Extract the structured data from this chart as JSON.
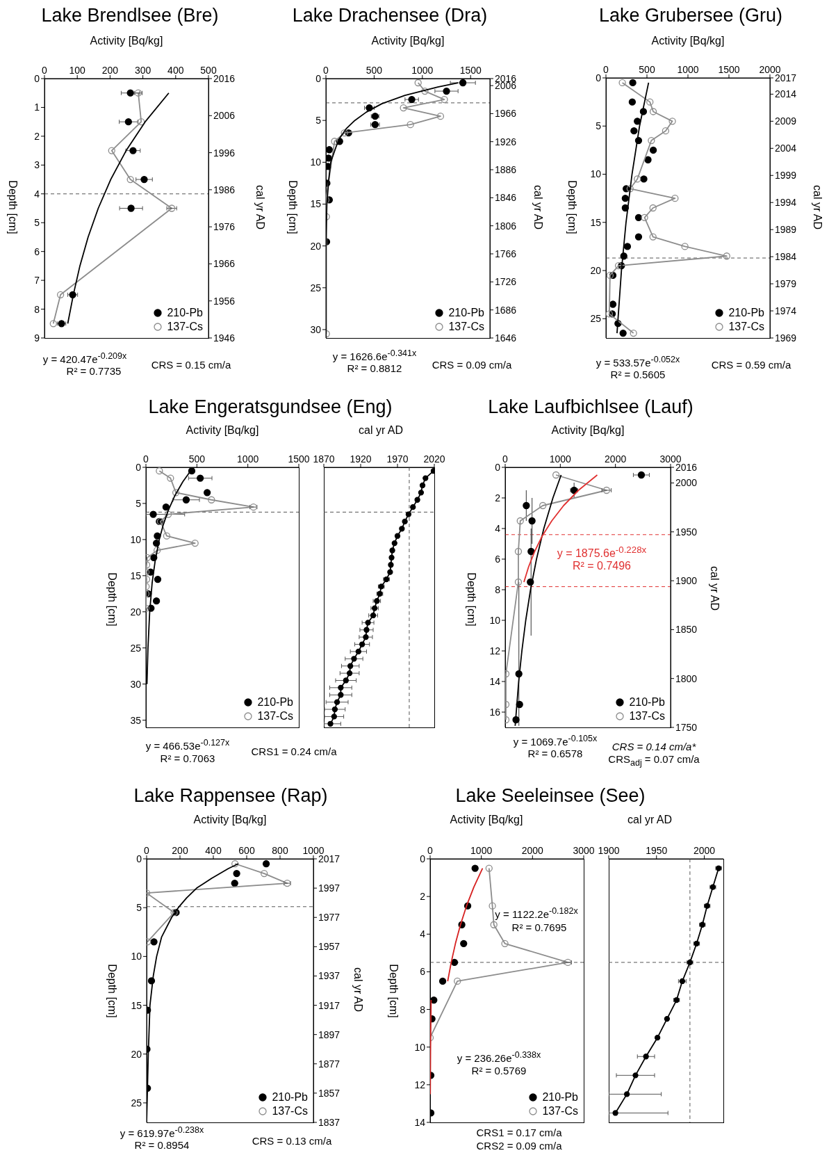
{
  "chart_data": [
    {
      "type": "scatter",
      "title": "Lake Brendlsee (Bre)",
      "xlabel": "Activity [Bq/kg]",
      "ylabel": "Depth [cm]",
      "y2label": "cal yr AD",
      "xlim": [
        0,
        500
      ],
      "xticks": [
        0,
        100,
        200,
        300,
        400,
        500
      ],
      "ylim": [
        9,
        0
      ],
      "yticks": [
        0,
        1,
        2,
        3,
        4,
        5,
        6,
        7,
        8,
        9
      ],
      "y2lim": [
        1946,
        2016
      ],
      "y2ticks": [
        2016,
        2006,
        1996,
        1986,
        1976,
        1966,
        1956,
        1946
      ],
      "legend": "bottom right",
      "ref_lines": [
        {
          "axis": "y",
          "value": 4,
          "line_style": "dashed",
          "color": "#555555"
        }
      ],
      "annotations": [
        "y = 420.47e$^{-0.209x}$",
        "R² = 0.7735",
        "CRS = 0.15 cm/a"
      ],
      "series": [
        {
          "name": "210-Pb",
          "marker": "circle",
          "color": "#000000",
          "x": [
            262,
            256,
            270,
            304,
            264,
            86,
            52
          ],
          "values": [
            0.5,
            1.5,
            2.5,
            3.5,
            4.5,
            7.5,
            8.5
          ],
          "xerrors": [
            28,
            28,
            22,
            25,
            35,
            15,
            13
          ]
        },
        {
          "name": "137-Cs",
          "type": "line",
          "marker": "circle",
          "line_style": "solid",
          "color": "#8c8c8c",
          "x": [
            286,
            295,
            205,
            262,
            388,
            49,
            27
          ],
          "values": [
            0.5,
            1.5,
            2.5,
            3.5,
            4.5,
            7.5,
            8.5
          ],
          "xerrors": [
            12,
            null,
            null,
            null,
            15,
            null,
            null
          ]
        },
        {
          "type": "line",
          "marker": "none",
          "color": "#000000",
          "x": [
            379,
            307,
            249,
            202,
            164,
            133,
            108,
            88,
            71
          ],
          "values": [
            0.5,
            1.5,
            2.5,
            3.5,
            4.5,
            5.5,
            6.5,
            7.5,
            8.5
          ]
        }
      ]
    },
    {
      "type": "scatter",
      "title": "Lake Drachensee (Dra)",
      "xlabel": "Activity [Bq/kg]",
      "ylabel": "Depth [cm]",
      "y2label": "cal yr AD",
      "xlim": [
        0,
        1700
      ],
      "xticks": [
        0,
        500,
        1000,
        1500
      ],
      "ylim": [
        31,
        0
      ],
      "yticks": [
        0,
        5,
        10,
        15,
        20,
        25,
        30
      ],
      "y2lim": [
        1646,
        2016
      ],
      "y2ticks": [
        2016,
        2006,
        1966,
        1926,
        1886,
        1846,
        1806,
        1766,
        1726,
        1686,
        1646
      ],
      "legend": "bottom right",
      "ref_lines": [
        {
          "axis": "y",
          "value": 2.9,
          "line_style": "dashed",
          "color": "#555555"
        }
      ],
      "annotations": [
        "y = 1626.6e$^{-0.341x}$",
        "R² = 0.8812",
        "CRS = 0.09 cm/a"
      ],
      "series": [
        {
          "name": "210-Pb",
          "marker": "circle",
          "color": "#000000",
          "x": [
            1420,
            1250,
            890,
            450,
            510,
            510,
            235,
            142,
            35,
            27,
            22,
            10,
            35,
            7
          ],
          "values": [
            0.5,
            1.5,
            2.5,
            3.5,
            4.5,
            5.5,
            6.5,
            7.5,
            8.5,
            9.5,
            10.5,
            12.5,
            14.5,
            19.5
          ],
          "xerrors": [
            130,
            120,
            70,
            50,
            40,
            45,
            null,
            null,
            null,
            null,
            null,
            null,
            null,
            null
          ]
        },
        {
          "name": "137-Cs",
          "type": "line",
          "marker": "circle",
          "line_style": "solid",
          "color": "#8c8c8c",
          "x": [
            956,
            1026,
            1228,
            804,
            1188,
            876,
            192,
            90,
            0,
            5,
            5
          ],
          "values": [
            0.5,
            1.5,
            2.5,
            3.5,
            4.5,
            5.5,
            6.5,
            7.5,
            14.5,
            16.5,
            30.5
          ]
        },
        {
          "type": "line",
          "marker": "none",
          "color": "#000000",
          "x": [
            1370,
            1160,
            820,
            580,
            420,
            300,
            210,
            150,
            110,
            50,
            30,
            10,
            0,
            0
          ],
          "values": [
            0.5,
            1,
            2,
            3,
            4,
            5,
            6,
            7,
            8,
            10,
            12,
            15,
            20,
            31
          ]
        }
      ]
    },
    {
      "type": "scatter",
      "title": "Lake Grubersee (Gru)",
      "xlabel": "Activity [Bq/kg]",
      "ylabel": "Depth [cm]",
      "y2label": "cal yr AD",
      "xlim": [
        0,
        2000
      ],
      "xticks": [
        0,
        500,
        1000,
        1500,
        2000
      ],
      "ylim": [
        27,
        0
      ],
      "yticks": [
        0,
        5,
        10,
        15,
        20,
        25
      ],
      "y2lim": [
        1969,
        2017
      ],
      "y2ticks": [
        2017,
        2014,
        2009,
        2004,
        1999,
        1994,
        1989,
        1984,
        1979,
        1974,
        1969
      ],
      "legend": "bottom right",
      "ref_lines": [
        {
          "axis": "y",
          "value": 18.7,
          "line_style": "dashed",
          "color": "#555555"
        }
      ],
      "annotations": [
        "y = 533.57e$^{-0.052x}$",
        "R² = 0.5605",
        "CRS = 0.59 cm/a"
      ],
      "series": [
        {
          "name": "210-Pb",
          "marker": "circle",
          "color": "#000000",
          "x": [
            327,
            321,
            457,
            383,
            342,
            398,
            577,
            513,
            462,
            247,
            236,
            236,
            398,
            398,
            262,
            218,
            189,
            85,
            85,
            77,
            147,
            209
          ],
          "values": [
            0.5,
            2.5,
            3.5,
            4.5,
            5.5,
            6.5,
            7.5,
            8.5,
            10.5,
            11.5,
            12.5,
            13.5,
            14.5,
            16.5,
            17.5,
            18.5,
            19.5,
            20.5,
            23.5,
            24.5,
            25.5,
            26.5
          ]
        },
        {
          "name": "137-Cs",
          "type": "line",
          "marker": "circle",
          "line_style": "solid",
          "color": "#8c8c8c",
          "x": [
            200,
            536,
            577,
            810,
            728,
            554,
            383,
            295,
            842,
            574,
            471,
            574,
            963,
            1473,
            153,
            50,
            41,
            336
          ],
          "values": [
            0.5,
            2.5,
            3.5,
            4.5,
            5.5,
            6.5,
            10.5,
            11.5,
            12.5,
            13.5,
            14.5,
            16.5,
            17.5,
            18.5,
            19.5,
            20.5,
            24.5,
            26.5
          ]
        },
        {
          "type": "line",
          "marker": "none",
          "color": "#000000",
          "x": [
            520,
            410,
            318,
            245,
            189,
            135
          ],
          "values": [
            0.5,
            5,
            10,
            15,
            20,
            26.5
          ]
        }
      ]
    },
    {
      "type": "scatter",
      "title": "Lake Engeratsgundsee (Eng)",
      "xlabel": "Activity [Bq/kg]",
      "ylabel": "Depth [cm]",
      "xlim": [
        0,
        1500
      ],
      "xticks": [
        0,
        500,
        1000,
        1500
      ],
      "ylim": [
        36,
        0
      ],
      "yticks": [
        0,
        5,
        10,
        15,
        20,
        25,
        30,
        35
      ],
      "legend": "bottom right",
      "ref_lines": [
        {
          "axis": "y",
          "value": 6.2,
          "line_style": "dashed",
          "color": "#555555"
        }
      ],
      "annotations": [
        "y = 466.53e$^{-0.127x}$",
        "R² = 0.7063",
        "CRS1 = 0.24 cm/a"
      ],
      "series": [
        {
          "name": "210-Pb",
          "marker": "circle",
          "color": "#000000",
          "x": [
            450,
            533,
            601,
            395,
            197,
            72,
            132,
            112,
            103,
            77,
            46,
            116,
            22,
            103,
            50
          ],
          "values": [
            0.5,
            1.5,
            3.5,
            4.5,
            5.5,
            6.5,
            7.5,
            9.5,
            10.5,
            12.5,
            14.5,
            15.5,
            17.5,
            18.5,
            19.5
          ],
          "xerrors": [
            null,
            115,
            null,
            130,
            null,
            [
              0,
              380
            ],
            null,
            null,
            null,
            null,
            null,
            null,
            null,
            null,
            null
          ]
        },
        {
          "name": "137-Cs",
          "type": "line",
          "marker": "circle",
          "line_style": "solid",
          "color": "#8c8c8c",
          "x": [
            132,
            241,
            294,
            643,
            1055,
            219,
            143,
            204,
            482,
            110,
            13,
            7,
            0,
            7,
            2,
            0,
            0
          ],
          "values": [
            0.5,
            1.5,
            3.5,
            4.5,
            5.5,
            6.5,
            7.5,
            9.5,
            10.5,
            11.5,
            12.5,
            13.5,
            14.5,
            15.5,
            16.5,
            17.5,
            19.5
          ],
          "xerrors": [
            null,
            null,
            null,
            null,
            35,
            null,
            null,
            null,
            null,
            null,
            null,
            null,
            null,
            null,
            null,
            null,
            null
          ]
        },
        {
          "type": "line",
          "marker": "none",
          "color": "#000000",
          "x": [
            438,
            362,
            281,
            218,
            169,
            131,
            90,
            61,
            37,
            20,
            10
          ],
          "values": [
            0.5,
            2,
            4,
            6,
            8,
            10,
            13,
            16,
            20,
            25,
            30
          ]
        }
      ]
    },
    {
      "type": "line",
      "xlabel": "cal yr AD",
      "xlim": [
        1870,
        2020
      ],
      "xticks": [
        1870,
        1920,
        1970,
        2020
      ],
      "ylim": [
        36,
        0
      ],
      "tick_labels": "x",
      "ref_lines": [
        {
          "axis": "y",
          "value": 6.2,
          "line_style": "dashed",
          "color": "#555555"
        },
        {
          "axis": "x",
          "value": 1986,
          "line_style": "dashed",
          "color": "#555555"
        }
      ],
      "series": [
        {
          "marker": "circle",
          "color": "#000000",
          "x": [
            2019,
            2008,
            2004,
            2002,
            1997,
            1991,
            1985,
            1980,
            1976,
            1970,
            1966,
            1963,
            1962,
            1961,
            1960,
            1955,
            1948,
            1946,
            1942,
            1939,
            1937,
            1930,
            1928,
            1927,
            1922,
            1917,
            1911,
            1906,
            1905,
            1900,
            1893,
            1893,
            1888,
            1885,
            1884,
            1879
          ],
          "values": [
            0.5,
            1.5,
            2.5,
            3.5,
            4.5,
            5.5,
            6.5,
            7.5,
            8.5,
            9.5,
            10.5,
            11.5,
            12.5,
            13.5,
            14.5,
            15.5,
            16.5,
            17.5,
            18.5,
            19.5,
            20.5,
            21.5,
            22.5,
            23.5,
            24.5,
            25.5,
            26.5,
            27.5,
            28.5,
            29.5,
            30.5,
            31.5,
            32.5,
            33.5,
            34.5,
            35.5
          ],
          "xerrors": [
            null,
            null,
            null,
            null,
            null,
            null,
            null,
            null,
            null,
            null,
            null,
            null,
            null,
            null,
            null,
            4,
            4,
            4,
            5,
            5,
            6,
            8,
            9,
            9,
            10,
            11,
            12,
            12,
            13,
            14,
            15,
            15,
            15,
            14,
            13,
            [
              1870,
              1893
            ]
          ]
        }
      ]
    },
    {
      "type": "scatter",
      "title": "Lake Laufbichlsee (Lauf)",
      "xlabel": "Activity [Bq/kg]",
      "ylabel": "Depth [cm]",
      "y2label": "cal yr AD",
      "xlim": [
        0,
        3000
      ],
      "xticks": [
        0,
        1000,
        2000,
        3000
      ],
      "ylim": [
        17,
        0
      ],
      "yticks": [
        0,
        2,
        4,
        6,
        8,
        10,
        12,
        14,
        16
      ],
      "y2lim": [
        1750,
        2016
      ],
      "y2ticks": [
        2016,
        2000,
        1950,
        1900,
        1850,
        1800,
        1750
      ],
      "legend": "bottom right",
      "ref_lines": [
        {
          "axis": "y",
          "value": 4.4,
          "line_style": "dashed",
          "color": "#e03030"
        },
        {
          "axis": "y",
          "value": 7.8,
          "line_style": "dashed",
          "color": "#e03030"
        }
      ],
      "annotations": [
        "y = 1069.7e$^{-0.105x}$",
        "R² = 0.6578",
        "CRS = 0.14 cm/a*",
        "CRS$_{adj}$ = 0.07 cm/a"
      ],
      "series": [
        {
          "name": "210-Pb",
          "marker": "circle",
          "color": "#000000",
          "x": [
            2470,
            1250,
            383,
            487,
            470,
            457,
            248,
            261,
            196
          ],
          "values": [
            0.5,
            1.5,
            2.5,
            3.5,
            5.5,
            7.5,
            13.5,
            15.5,
            16.5
          ],
          "xerrors": [
            145,
            65,
            null,
            null,
            null,
            null,
            null,
            null,
            null
          ],
          "errors": [
            null,
            0.5,
            1,
            [
              2,
              5
            ],
            [
              4,
              11
            ],
            null,
            [
              7.5,
              16.9
            ],
            null,
            null
          ]
        },
        {
          "name": "137-Cs",
          "type": "line",
          "marker": "circle",
          "line_style": "solid",
          "color": "#8c8c8c",
          "x": [
            922,
            1839,
            683,
            274,
            239,
            239,
            13,
            13,
            13
          ],
          "values": [
            0.5,
            1.5,
            2.5,
            3.5,
            5.5,
            7.5,
            13.5,
            15.5,
            16.5
          ],
          "xerrors": [
            null,
            85,
            null,
            null,
            null,
            null,
            null,
            null,
            null
          ]
        },
        {
          "type": "line",
          "marker": "none",
          "color": "#000000",
          "x": [
            1015,
            866,
            701,
            568,
            460,
            373,
            303,
            245,
            181
          ],
          "values": [
            0.5,
            2,
            4,
            6,
            8,
            10,
            12,
            14,
            16.9
          ]
        },
        {
          "name": "y = 1875.6e$^{-0.228x}$\nR² = 0.7496",
          "type": "line",
          "marker": "none",
          "color": "#e03030",
          "x": [
            1670,
            1330,
            1060,
            845,
            670,
            535,
            425,
            340
          ],
          "values": [
            0.5,
            1.5,
            2.5,
            3.5,
            4.5,
            5.5,
            6.5,
            7.5
          ]
        }
      ]
    },
    {
      "type": "scatter",
      "title": "Lake Rappensee (Rap)",
      "xlabel": "Activity [Bq/kg]",
      "ylabel": "Depth [cm]",
      "y2label": "cal yr AD",
      "xlim": [
        0,
        1000
      ],
      "xticks": [
        0,
        200,
        400,
        600,
        800,
        1000
      ],
      "ylim": [
        27,
        0
      ],
      "yticks": [
        0,
        5,
        10,
        15,
        20,
        25
      ],
      "y2lim": [
        1837,
        2017
      ],
      "y2ticks": [
        2017,
        1997,
        1977,
        1957,
        1937,
        1917,
        1897,
        1877,
        1857,
        1837
      ],
      "legend": "bottom right",
      "ref_lines": [
        {
          "axis": "y",
          "value": 4.9,
          "line_style": "dashed",
          "color": "#555555"
        }
      ],
      "annotations": [
        "y = 619.97e$^{-0.238x}$",
        "R² = 0.8954",
        "CRS = 0.13 cm/a"
      ],
      "series": [
        {
          "name": "210-Pb",
          "marker": "circle",
          "color": "#000000",
          "x": [
            717,
            540,
            528,
            177,
            44,
            29,
            5,
            2,
            5
          ],
          "values": [
            0.5,
            1.5,
            2.5,
            5.5,
            8.5,
            12.5,
            15.5,
            19.5,
            23.5
          ]
        },
        {
          "name": "137-Cs",
          "type": "line",
          "marker": "circle",
          "line_style": "solid",
          "color": "#8c8c8c",
          "x": [
            530,
            705,
            843,
            0,
            165,
            5
          ],
          "values": [
            0.5,
            1.5,
            2.5,
            3.5,
            5.5,
            8.5
          ],
          "xerrors": [
            null,
            null,
            20,
            null,
            null,
            null
          ]
        },
        {
          "type": "line",
          "marker": "none",
          "color": "#000000",
          "x": [
            550,
            490,
            390,
            300,
            240,
            190,
            150,
            90,
            60,
            40,
            20,
            10,
            0
          ],
          "values": [
            0.5,
            1,
            2,
            3,
            4,
            5,
            6,
            8,
            10,
            12,
            15,
            20,
            27
          ]
        }
      ]
    },
    {
      "type": "scatter",
      "title": "Lake Seeleinsee (See)",
      "xlabel": "Activity [Bq/kg]",
      "ylabel": "Depth [cm]",
      "xlim": [
        0,
        3000
      ],
      "xticks": [
        0,
        1000,
        2000,
        3000
      ],
      "ylim": [
        14,
        0
      ],
      "yticks": [
        0,
        2,
        4,
        6,
        8,
        10,
        12,
        14
      ],
      "legend": "bottom right",
      "ref_lines": [
        {
          "axis": "y",
          "value": 5.5,
          "line_style": "dashed",
          "color": "#555555"
        }
      ],
      "annotations": [
        "y = 1122.2e$^{-0.182x}$",
        "R² = 0.7695",
        "y = 236.26e$^{-0.338x}$",
        "R² = 0.5769",
        "CRS1 = 0.17 cm/a",
        "CRS2 = 0.09 cm/a"
      ],
      "series": [
        {
          "name": "210-Pb",
          "marker": "circle",
          "color": "#000000",
          "x": [
            878,
            734,
            619,
            655,
            475,
            245,
            72,
            36,
            14,
            14
          ],
          "values": [
            0.5,
            2.5,
            3.5,
            4.5,
            5.5,
            6.5,
            7.5,
            8.5,
            11.5,
            13.5
          ]
        },
        {
          "name": "137-Cs",
          "type": "line",
          "marker": "circle",
          "line_style": "solid",
          "color": "#8c8c8c",
          "x": [
            1151,
            1216,
            1245,
            1460,
            2691,
            532,
            0
          ],
          "values": [
            0.5,
            2.5,
            3.5,
            4.5,
            5.5,
            6.5,
            9.5
          ],
          "xerrors": [
            null,
            null,
            null,
            null,
            70,
            null,
            null
          ]
        },
        {
          "type": "line",
          "marker": "none",
          "color": "#d62020",
          "x": [
            1024,
            854,
            711,
            593,
            494,
            412,
            343
          ],
          "values": [
            0.5,
            1.5,
            2.5,
            3.5,
            4.5,
            5.5,
            6.5
          ]
        },
        {
          "type": "line",
          "marker": "none",
          "color": "#d62020",
          "x": [
            19,
            8,
            3
          ],
          "values": [
            7.5,
            10,
            12.5
          ]
        }
      ]
    },
    {
      "type": "line",
      "xlabel": "cal yr AD",
      "xlim": [
        1900,
        2020
      ],
      "xticks": [
        1900,
        1950,
        2000
      ],
      "ylim": [
        14,
        0
      ],
      "tick_labels": "x",
      "ref_lines": [
        {
          "axis": "y",
          "value": 5.5,
          "line_style": "dashed",
          "color": "#555555"
        },
        {
          "axis": "x",
          "value": 1985,
          "line_style": "dashed",
          "color": "#555555"
        }
      ],
      "series": [
        {
          "marker": "circle",
          "color": "#000000",
          "x": [
            2015,
            2009,
            2003,
            1998,
            1992,
            1985,
            1977,
            1971,
            1961,
            1951,
            1939,
            1928,
            1919,
            1907
          ],
          "values": [
            0.5,
            1.5,
            2.5,
            3.5,
            4.5,
            5.5,
            6.5,
            7.5,
            8.5,
            9.5,
            10.5,
            11.5,
            12.5,
            13.5
          ],
          "xerrors": [
            3,
            3,
            3,
            3,
            3,
            3,
            4,
            3,
            null,
            null,
            9,
            [
              1908,
              1948
            ],
            [
              1900,
              1955
            ],
            [
              1900,
              1962
            ]
          ]
        }
      ]
    }
  ]
}
